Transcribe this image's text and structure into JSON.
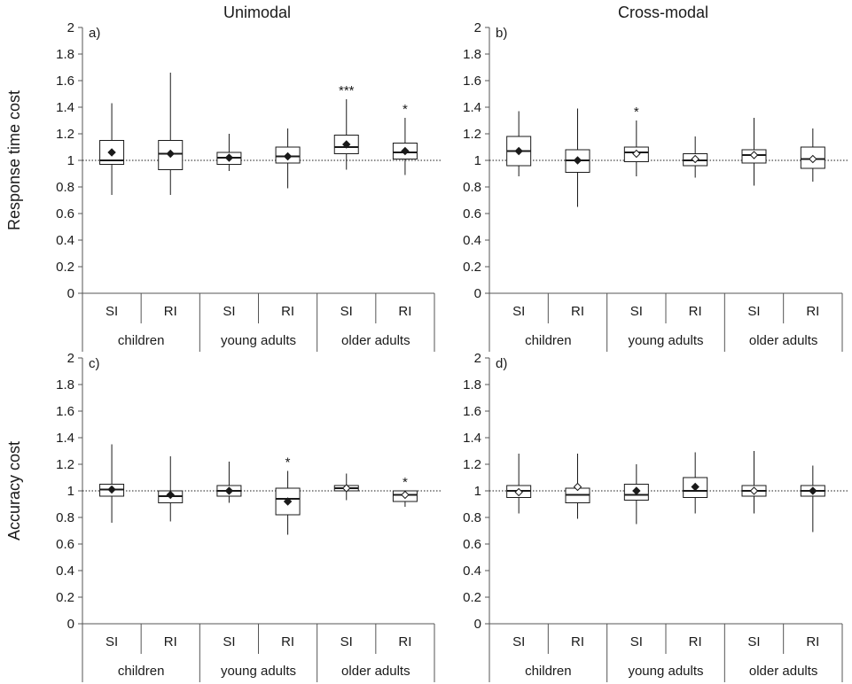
{
  "colors": {
    "axis": "#555555",
    "box": "#1a1a1a",
    "reference": "#1a1a1a"
  },
  "column_titles": [
    "Unimodal",
    "Cross-modal"
  ],
  "chart_data": [
    {
      "type": "box",
      "panel_label": "a)",
      "ylabel": "Response time cost",
      "ylim": [
        0,
        2
      ],
      "yticks": [
        "0",
        "0.2",
        "0.4",
        "0.6",
        "0.8",
        "1",
        "1.2",
        "1.4",
        "1.6",
        "1.8",
        "2"
      ],
      "reference_line": 1.0,
      "categories": [
        "SI",
        "RI",
        "SI",
        "RI",
        "SI",
        "RI"
      ],
      "groups": [
        "children",
        "young adults",
        "older adults"
      ],
      "boxes": [
        {
          "min": 0.74,
          "q1": 0.97,
          "median": 1.0,
          "q3": 1.15,
          "max": 1.43,
          "mean": 1.06,
          "mean_filled": true,
          "sig": ""
        },
        {
          "min": 0.74,
          "q1": 0.93,
          "median": 1.05,
          "q3": 1.15,
          "max": 1.66,
          "mean": 1.05,
          "mean_filled": true,
          "sig": ""
        },
        {
          "min": 0.92,
          "q1": 0.97,
          "median": 1.02,
          "q3": 1.06,
          "max": 1.2,
          "mean": 1.02,
          "mean_filled": true,
          "sig": ""
        },
        {
          "min": 0.79,
          "q1": 0.98,
          "median": 1.03,
          "q3": 1.1,
          "max": 1.24,
          "mean": 1.03,
          "mean_filled": true,
          "sig": ""
        },
        {
          "min": 0.93,
          "q1": 1.05,
          "median": 1.1,
          "q3": 1.19,
          "max": 1.46,
          "mean": 1.12,
          "mean_filled": true,
          "sig": "***"
        },
        {
          "min": 0.89,
          "q1": 1.01,
          "median": 1.06,
          "q3": 1.13,
          "max": 1.32,
          "mean": 1.07,
          "mean_filled": true,
          "sig": "*"
        }
      ]
    },
    {
      "type": "box",
      "panel_label": "b)",
      "ylabel": "",
      "ylim": [
        0,
        2
      ],
      "yticks": [
        "0",
        "0.2",
        "0.4",
        "0.6",
        "0.8",
        "1",
        "1.2",
        "1.4",
        "1.6",
        "1.8",
        "2"
      ],
      "reference_line": 1.0,
      "categories": [
        "SI",
        "RI",
        "SI",
        "RI",
        "SI",
        "RI"
      ],
      "groups": [
        "children",
        "young adults",
        "older adults"
      ],
      "boxes": [
        {
          "min": 0.88,
          "q1": 0.96,
          "median": 1.07,
          "q3": 1.18,
          "max": 1.37,
          "mean": 1.07,
          "mean_filled": true,
          "sig": ""
        },
        {
          "min": 0.65,
          "q1": 0.91,
          "median": 1.0,
          "q3": 1.08,
          "max": 1.39,
          "mean": 1.0,
          "mean_filled": true,
          "sig": ""
        },
        {
          "min": 0.88,
          "q1": 0.99,
          "median": 1.06,
          "q3": 1.1,
          "max": 1.3,
          "mean": 1.05,
          "mean_filled": false,
          "sig": "*"
        },
        {
          "min": 0.87,
          "q1": 0.96,
          "median": 1.0,
          "q3": 1.05,
          "max": 1.18,
          "mean": 1.01,
          "mean_filled": false,
          "sig": ""
        },
        {
          "min": 0.81,
          "q1": 0.98,
          "median": 1.04,
          "q3": 1.08,
          "max": 1.32,
          "mean": 1.04,
          "mean_filled": false,
          "sig": ""
        },
        {
          "min": 0.84,
          "q1": 0.94,
          "median": 1.01,
          "q3": 1.1,
          "max": 1.24,
          "mean": 1.01,
          "mean_filled": false,
          "sig": ""
        }
      ]
    },
    {
      "type": "box",
      "panel_label": "c)",
      "ylabel": "Accuracy cost",
      "ylim": [
        0,
        2
      ],
      "yticks": [
        "0",
        "0.2",
        "0.4",
        "0.6",
        "0.8",
        "1",
        "1.2",
        "1.4",
        "1.6",
        "1.8",
        "2"
      ],
      "reference_line": 1.0,
      "categories": [
        "SI",
        "RI",
        "SI",
        "RI",
        "SI",
        "RI"
      ],
      "groups": [
        "children",
        "young adults",
        "older adults"
      ],
      "boxes": [
        {
          "min": 0.76,
          "q1": 0.96,
          "median": 1.01,
          "q3": 1.05,
          "max": 1.35,
          "mean": 1.01,
          "mean_filled": true,
          "sig": ""
        },
        {
          "min": 0.77,
          "q1": 0.91,
          "median": 0.96,
          "q3": 1.0,
          "max": 1.26,
          "mean": 0.97,
          "mean_filled": true,
          "sig": ""
        },
        {
          "min": 0.91,
          "q1": 0.96,
          "median": 1.0,
          "q3": 1.04,
          "max": 1.22,
          "mean": 1.0,
          "mean_filled": true,
          "sig": ""
        },
        {
          "min": 0.67,
          "q1": 0.82,
          "median": 0.94,
          "q3": 1.02,
          "max": 1.15,
          "mean": 0.92,
          "mean_filled": true,
          "sig": "*"
        },
        {
          "min": 0.93,
          "q1": 1.0,
          "median": 1.02,
          "q3": 1.04,
          "max": 1.13,
          "mean": 1.02,
          "mean_filled": false,
          "sig": ""
        },
        {
          "min": 0.88,
          "q1": 0.92,
          "median": 0.97,
          "q3": 1.0,
          "max": 1.0,
          "mean": 0.97,
          "mean_filled": false,
          "sig": "*"
        }
      ]
    },
    {
      "type": "box",
      "panel_label": "d)",
      "ylabel": "",
      "ylim": [
        0,
        2
      ],
      "yticks": [
        "0",
        "0.2",
        "0.4",
        "0.6",
        "0.8",
        "1",
        "1.2",
        "1.4",
        "1.6",
        "1.8",
        "2"
      ],
      "reference_line": 1.0,
      "categories": [
        "SI",
        "RI",
        "SI",
        "RI",
        "SI",
        "RI"
      ],
      "groups": [
        "children",
        "young adults",
        "older adults"
      ],
      "boxes": [
        {
          "min": 0.83,
          "q1": 0.95,
          "median": 1.0,
          "q3": 1.04,
          "max": 1.28,
          "mean": 0.99,
          "mean_filled": false,
          "sig": ""
        },
        {
          "min": 0.79,
          "q1": 0.91,
          "median": 0.97,
          "q3": 1.02,
          "max": 1.28,
          "mean": 1.03,
          "mean_filled": false,
          "sig": ""
        },
        {
          "min": 0.75,
          "q1": 0.93,
          "median": 0.97,
          "q3": 1.05,
          "max": 1.2,
          "mean": 1.0,
          "mean_filled": true,
          "sig": ""
        },
        {
          "min": 0.83,
          "q1": 0.95,
          "median": 1.0,
          "q3": 1.1,
          "max": 1.29,
          "mean": 1.03,
          "mean_filled": true,
          "sig": ""
        },
        {
          "min": 0.83,
          "q1": 0.96,
          "median": 1.0,
          "q3": 1.04,
          "max": 1.3,
          "mean": 1.0,
          "mean_filled": false,
          "sig": ""
        },
        {
          "min": 0.69,
          "q1": 0.96,
          "median": 1.0,
          "q3": 1.04,
          "max": 1.19,
          "mean": 1.0,
          "mean_filled": true,
          "sig": ""
        }
      ]
    }
  ]
}
